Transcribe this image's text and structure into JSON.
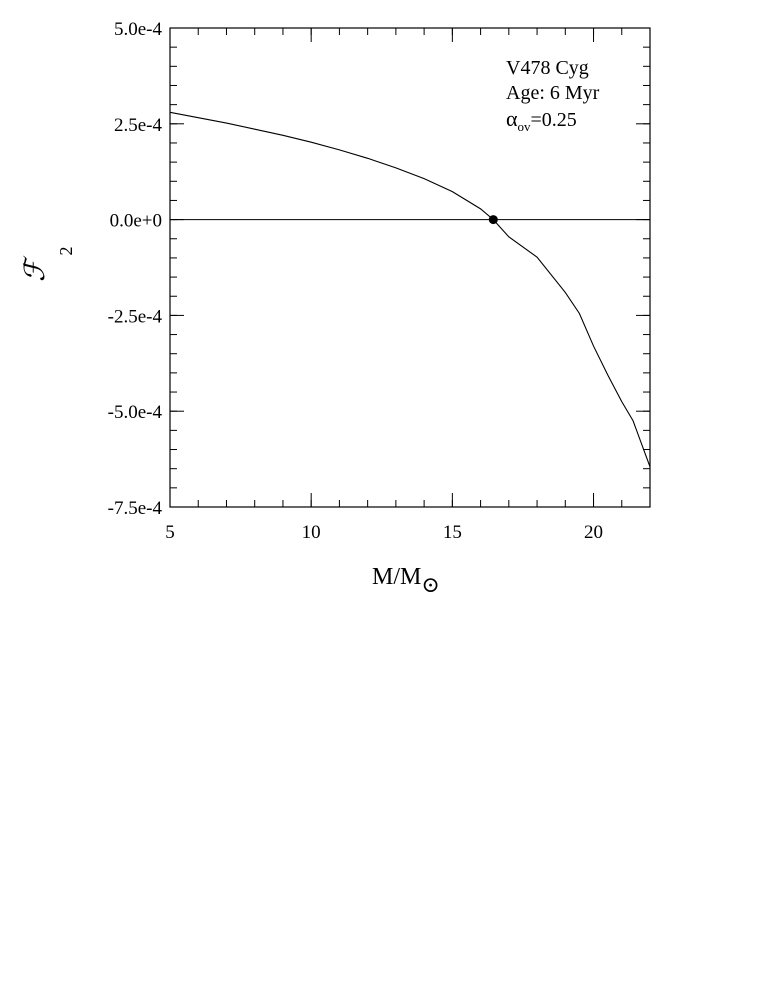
{
  "chart_data": {
    "type": "line",
    "x": [
      5.0,
      6.0,
      7.0,
      8.0,
      9.0,
      10.0,
      11.0,
      12.0,
      13.0,
      14.0,
      15.0,
      16.0,
      16.45,
      17.0,
      18.0,
      19.0,
      19.5,
      20.0,
      20.5,
      21.0,
      21.4,
      21.7,
      22.0
    ],
    "series": [
      {
        "values": [
          0.00028,
          0.000266,
          0.000252,
          0.000236,
          0.00022,
          0.000202,
          0.000182,
          0.00016,
          0.000135,
          0.000107,
          7.3e-05,
          2.8e-05,
          0.0,
          -4.5e-05,
          -9.8e-05,
          -0.00019,
          -0.000245,
          -0.00033,
          -0.000405,
          -0.000475,
          -0.000525,
          -0.000585,
          -0.000645
        ]
      }
    ],
    "reference_line_y": 0.0,
    "marked_point": {
      "x": 16.45,
      "y": 0.0
    },
    "xlabel": "M/M",
    "xlabel_symbol": "⊙",
    "ylabel": "ℱ",
    "ylabel_subscript": "2",
    "xlim": [
      5,
      22
    ],
    "ylim": [
      -0.00075,
      0.0005
    ],
    "x_tick_values": [
      5,
      10,
      15,
      20
    ],
    "x_tick_labels": [
      "5",
      "10",
      "15",
      "20"
    ],
    "y_tick_values": [
      0.0005,
      0.00025,
      0.0,
      -0.00025,
      -0.0005,
      -0.00075
    ],
    "y_tick_labels": [
      "5.0e-4",
      "2.5e-4",
      "0.0e+0",
      "-2.5e-4",
      "-5.0e-4",
      "-7.5e-4"
    ],
    "annotations": {
      "line1": "V478 Cyg",
      "line2": "Age: 6 Myr",
      "alpha_symbol": "α",
      "alpha_subscript": "ov",
      "alpha_value": "=0.25"
    },
    "grid": false
  }
}
